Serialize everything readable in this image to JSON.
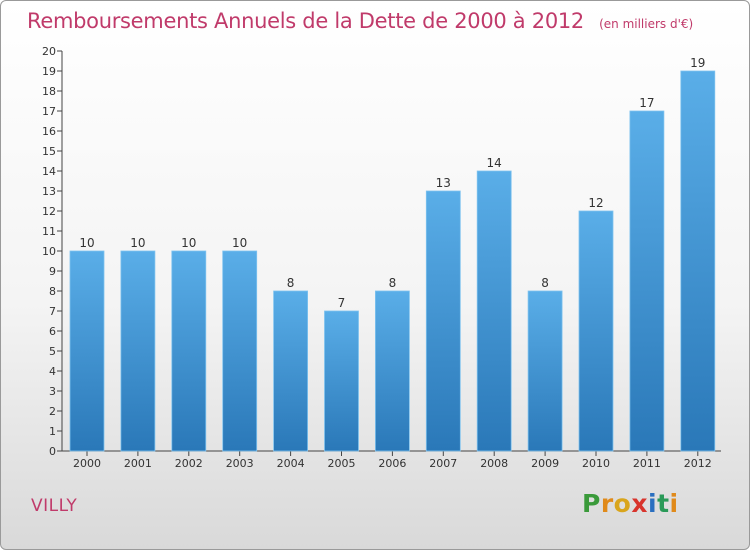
{
  "header": {
    "title": "Remboursements Annuels de la Dette de 2000 à 2012",
    "unit": "(en milliers d'€)"
  },
  "footer": {
    "commune": "VILLY",
    "logo": {
      "letters": [
        "P",
        "r",
        "o",
        "x",
        "i",
        "t",
        "i"
      ],
      "colors": [
        "#3a9a3a",
        "#e08a1a",
        "#d9a51c",
        "#d8342c",
        "#2a6fc0",
        "#2a9a58",
        "#e08a1a"
      ]
    }
  },
  "chart_data": {
    "type": "bar",
    "title": "Remboursements Annuels de la Dette de 2000 à 2012",
    "subtitle": "(en milliers d'€)",
    "categories": [
      "2000",
      "2001",
      "2002",
      "2003",
      "2004",
      "2005",
      "2006",
      "2007",
      "2008",
      "2009",
      "2010",
      "2011",
      "2012"
    ],
    "values": [
      10,
      10,
      10,
      10,
      8,
      7,
      8,
      13,
      14,
      8,
      12,
      17,
      19
    ],
    "data_labels": [
      "10",
      "10",
      "10",
      "10",
      "8",
      "7",
      "8",
      "13",
      "14",
      "8",
      "12",
      "17",
      "19"
    ],
    "ylim": [
      0,
      20
    ],
    "yticks": [
      0,
      1,
      2,
      3,
      4,
      5,
      6,
      7,
      8,
      9,
      10,
      11,
      12,
      13,
      14,
      15,
      16,
      17,
      18,
      19,
      20
    ],
    "grid": false,
    "colors": {
      "bar_light": "#5aaee8",
      "bar_dark": "#2a78b8",
      "axis": "#444444",
      "text": "#333333"
    }
  }
}
